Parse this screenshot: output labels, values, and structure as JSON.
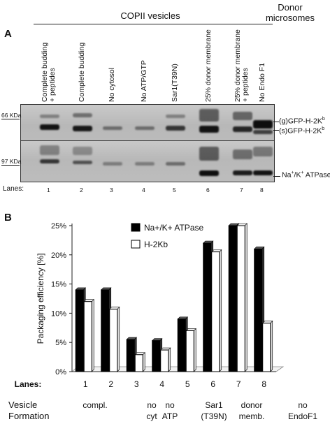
{
  "panelA": {
    "letter": "A",
    "group_copii": "COPII vesicles",
    "group_donor_line1": "Donor",
    "group_donor_line2": "microsomes",
    "columns": [
      {
        "line1": "Complete budding",
        "line2": "+ peptides"
      },
      {
        "line1": "Complete budding",
        "line2": ""
      },
      {
        "line1": "No cytosol",
        "line2": ""
      },
      {
        "line1": "No ATP/GTP",
        "line2": ""
      },
      {
        "line1": "Sar1(T39N)",
        "line2": ""
      },
      {
        "line1": "25% donor membrane",
        "line2": ""
      },
      {
        "line1": "25% donor membrane",
        "line2": "+ peptides"
      },
      {
        "line1": "No Endo F1",
        "line2": ""
      }
    ],
    "kda_top": "66 KDa",
    "kda_bottom": "97 KDa",
    "band_g_prefix": "(g)GFP-H-2K",
    "band_g_sup": "b",
    "band_s_prefix": "(s)GFP-H-2K",
    "band_s_sup": "b",
    "band_atpase_pre": "Na",
    "band_atpase_sup1": "+",
    "band_atpase_mid": "/K",
    "band_atpase_sup2": "+",
    "band_atpase_post": " ATPase",
    "lanes_label": "Lanes:",
    "lane_numbers": [
      "1",
      "2",
      "3",
      "4",
      "5",
      "6",
      "7",
      "8"
    ]
  },
  "panelB": {
    "letter": "B",
    "lanes_label": "Lanes:",
    "vesicle_label_line1": "Vesicle",
    "vesicle_label_line2": "Formation",
    "vesicle_conditions": [
      {
        "line1": "compl.",
        "line2": ""
      },
      {
        "line1": "no",
        "line2": "cyt"
      },
      {
        "line1": "no",
        "line2": "ATP"
      },
      {
        "line1": "Sar1",
        "line2": "(T39N)"
      },
      {
        "line1": "donor",
        "line2": "memb."
      },
      {
        "line1": "no",
        "line2": "EndoF1"
      }
    ]
  },
  "chart_data": {
    "type": "bar",
    "categories": [
      "1",
      "2",
      "3",
      "4",
      "5",
      "6",
      "7",
      "8"
    ],
    "series": [
      {
        "name": "Na+/K+ ATPase",
        "color": "#000000",
        "values": [
          14,
          14,
          5.5,
          5.3,
          9,
          22,
          25,
          21
        ]
      },
      {
        "name": "H-2Kb",
        "color": "#ffffff",
        "values": [
          12,
          10.7,
          2.9,
          3.7,
          7,
          20.5,
          25,
          8.3
        ]
      }
    ],
    "xlabel": "Lanes:",
    "ylabel": "Packaging efficiency [%]",
    "ylim": [
      0,
      25
    ],
    "yticks": [
      "0%",
      "5%",
      "10%",
      "15%",
      "20%",
      "25%"
    ],
    "grid": false,
    "legend_position": "top-center"
  }
}
